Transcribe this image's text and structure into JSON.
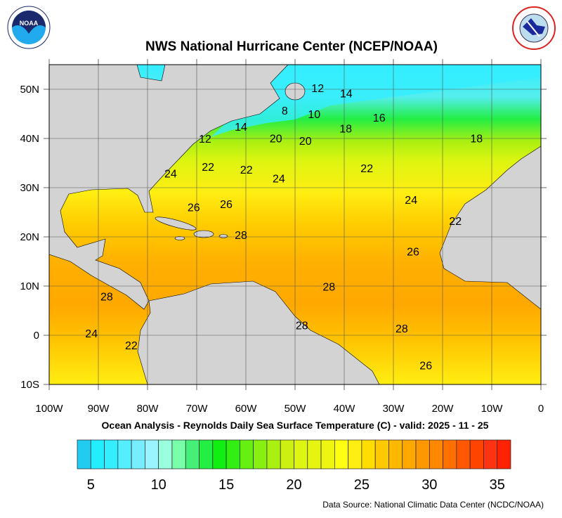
{
  "header": {
    "title": "NWS National Hurricane Center (NCEP/NOAA)",
    "left_logo": "NOAA",
    "right_logo": "NATIONAL WEATHER SERVICE"
  },
  "map": {
    "lon_range": [
      -100,
      0
    ],
    "lat_range": [
      -10,
      55
    ],
    "grid": true,
    "lon_labels": [
      "100W",
      "90W",
      "80W",
      "70W",
      "60W",
      "50W",
      "40W",
      "30W",
      "20W",
      "10W",
      "0"
    ],
    "lat_labels": [
      "50N",
      "40N",
      "30N",
      "20N",
      "10N",
      "0",
      "10S"
    ],
    "land_color": "#d3d3d3",
    "contour_labels": [
      {
        "v": "12",
        "lon": -45.4,
        "lat": 50.3
      },
      {
        "v": "14",
        "lon": -39.6,
        "lat": 49.2
      },
      {
        "v": "8",
        "lon": -52.1,
        "lat": 45.7
      },
      {
        "v": "10",
        "lon": -46.1,
        "lat": 45
      },
      {
        "v": "16",
        "lon": -32.9,
        "lat": 44.3
      },
      {
        "v": "14",
        "lon": -61,
        "lat": 42.4
      },
      {
        "v": "18",
        "lon": -39.7,
        "lat": 42.1
      },
      {
        "v": "18",
        "lon": -13.1,
        "lat": 40.1
      },
      {
        "v": "12",
        "lon": -68.3,
        "lat": 40
      },
      {
        "v": "20",
        "lon": -53.9,
        "lat": 40.1
      },
      {
        "v": "20",
        "lon": -47.9,
        "lat": 39.6
      },
      {
        "v": "24",
        "lon": -75.3,
        "lat": 32.9
      },
      {
        "v": "22",
        "lon": -67.7,
        "lat": 34.3
      },
      {
        "v": "22",
        "lon": -59.9,
        "lat": 33.7
      },
      {
        "v": "24",
        "lon": -53.3,
        "lat": 31.9
      },
      {
        "v": "22",
        "lon": -35.4,
        "lat": 34
      },
      {
        "v": "26",
        "lon": -70.6,
        "lat": 26.1
      },
      {
        "v": "26",
        "lon": -64,
        "lat": 26.7
      },
      {
        "v": "24",
        "lon": -26.4,
        "lat": 27.6
      },
      {
        "v": "22",
        "lon": -17.4,
        "lat": 23.3
      },
      {
        "v": "28",
        "lon": -61,
        "lat": 20.4
      },
      {
        "v": "26",
        "lon": -26,
        "lat": 17.1
      },
      {
        "v": "28",
        "lon": -43.1,
        "lat": 9.9
      },
      {
        "v": "28",
        "lon": -88.3,
        "lat": 7.9
      },
      {
        "v": "28",
        "lon": -48.6,
        "lat": 2.1
      },
      {
        "v": "28",
        "lon": -28.3,
        "lat": 1.4
      },
      {
        "v": "24",
        "lon": -91.4,
        "lat": 0.4
      },
      {
        "v": "22",
        "lon": -83.3,
        "lat": -2
      },
      {
        "v": "26",
        "lon": -23.4,
        "lat": -6.1
      }
    ]
  },
  "subtitle": "Ocean Analysis - Reynolds Daily Sea Surface Temperature (C) - valid: 2025 - 11 - 25",
  "colorbar": {
    "labels": [
      "5",
      "10",
      "15",
      "20",
      "25",
      "30",
      "35"
    ],
    "colors": [
      "#22ccf0",
      "#22eeff",
      "#33eeff",
      "#55eeff",
      "#77eeff",
      "#99f4ff",
      "#99ffdd",
      "#77ffaa",
      "#44f077",
      "#22ee44",
      "#11ee11",
      "#33ee11",
      "#66f011",
      "#88f011",
      "#aaf011",
      "#ccf011",
      "#ddf511",
      "#e5f511",
      "#eef511",
      "#ffff11",
      "#ffee11",
      "#ffdd00",
      "#ffc800",
      "#ffb800",
      "#ffa800",
      "#ff9800",
      "#ff8800",
      "#ff7000",
      "#ff5800",
      "#ff4400",
      "#ff3311",
      "#ff2200"
    ]
  },
  "footer": {
    "source": "Data Source: National Climatic Data Center (NCDC/NOAA)"
  }
}
